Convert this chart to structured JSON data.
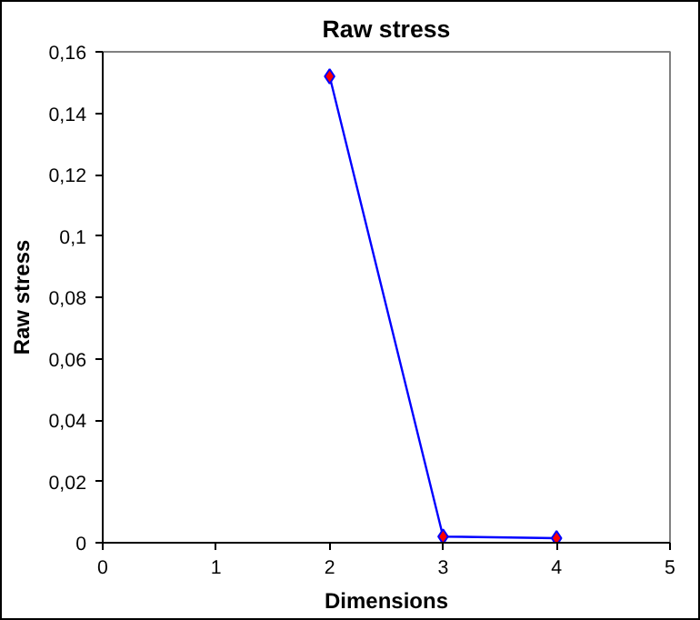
{
  "chart_data": {
    "type": "line",
    "title": "Raw stress",
    "xlabel": "Dimensions",
    "ylabel": "Raw stress",
    "x": [
      2,
      3,
      4
    ],
    "series": [
      {
        "color": "#0000ff",
        "colors": [
          "#ff0000",
          "#ff0000",
          "#ff0000"
        ],
        "values": [
          0.152,
          0.002,
          0.0015
        ]
      }
    ],
    "marker": "diamond",
    "line_style": "solid",
    "grid": false,
    "xlim": [
      0,
      5
    ],
    "xticks": [
      0,
      1,
      2,
      3,
      4,
      5
    ],
    "ylim": [
      0,
      0.16
    ],
    "yticks": [
      0,
      {
        "value": 0.02,
        "label": "0,02"
      },
      {
        "value": 0.04,
        "label": "0,04"
      },
      {
        "value": 0.06,
        "label": "0,06"
      },
      {
        "value": 0.08,
        "label": "0,08"
      },
      {
        "value": 0.1,
        "label": "0,1"
      },
      {
        "value": 0.12,
        "label": "0,12"
      },
      {
        "value": 0.14,
        "label": "0,14"
      },
      {
        "value": 0.16,
        "label": "0,16"
      }
    ]
  }
}
